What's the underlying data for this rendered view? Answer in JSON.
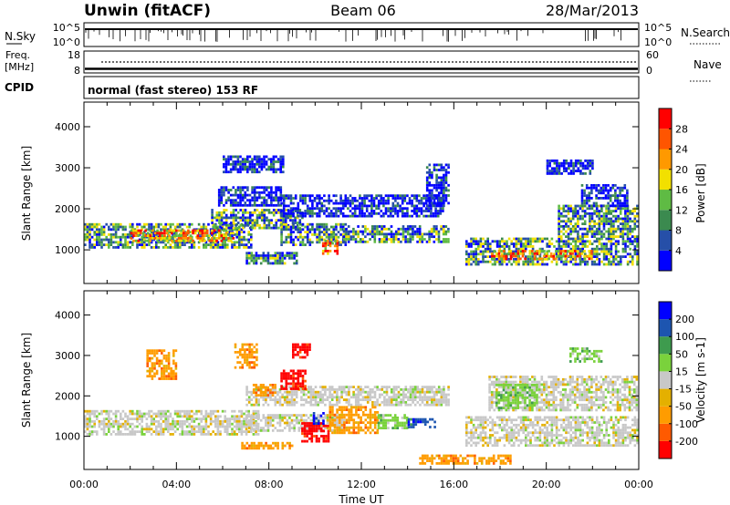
{
  "header": {
    "station": "Unwin (fitACF)",
    "beam": "Beam 06",
    "date": "28/Mar/2013"
  },
  "noise_panel": {
    "left_label": "N.Sky",
    "left_ticks": [
      "10^5",
      "10^0"
    ],
    "right_ticks": [
      "10^5",
      "10^0"
    ],
    "right_label": "N.Search"
  },
  "freq_panel": {
    "left_label_line1": "Freq.",
    "left_label_line2": "[MHz]",
    "left_ticks": [
      "18",
      "8"
    ],
    "right_ticks": [
      "60",
      "0"
    ],
    "right_label": "Nave"
  },
  "cpid": {
    "label": "CPID",
    "text": "normal (fast stereo) 153 RF"
  },
  "x_axis": {
    "ticks": [
      "00:00",
      "04:00",
      "08:00",
      "12:00",
      "16:00",
      "20:00",
      "00:00"
    ],
    "label": "Time UT"
  },
  "colors": {
    "power": [
      "#0000ff",
      "#264fa8",
      "#3b8a4f",
      "#5fbb44",
      "#f2e000",
      "#ff9900",
      "#ff5500",
      "#ff0000"
    ],
    "velocity": [
      "#ff0000",
      "#ff5a00",
      "#ff9c00",
      "#e4b000",
      "#c8c8c8",
      "#7ad23c",
      "#3e9b4e",
      "#1d55b0",
      "#0000ff"
    ],
    "gray": "#c8c8c8"
  },
  "chart_data": [
    {
      "type": "heatmap",
      "name": "power",
      "ylabel": "Slant Range [km]",
      "xlabel": "",
      "xlim_hours": [
        0,
        24
      ],
      "ylim": [
        180,
        4600
      ],
      "yticks": [
        1000,
        2000,
        3000,
        4000
      ],
      "colorbar": {
        "label": "Power [dB]",
        "ticks": [
          "4",
          "8",
          "12",
          "16",
          "20",
          "24",
          "28"
        ],
        "range": [
          0,
          32
        ]
      },
      "echo_regions": [
        {
          "x0": 0.0,
          "x1": 7.2,
          "r0": 1050,
          "r1": 1650,
          "level": "mixed"
        },
        {
          "x0": 2.0,
          "x1": 6.5,
          "r0": 1200,
          "r1": 1500,
          "level": "strong"
        },
        {
          "x0": 5.5,
          "x1": 9.5,
          "r0": 1550,
          "r1": 2000,
          "level": "mixed"
        },
        {
          "x0": 5.8,
          "x1": 8.5,
          "r0": 2100,
          "r1": 2550,
          "level": "weak"
        },
        {
          "x0": 6.0,
          "x1": 8.6,
          "r0": 2900,
          "r1": 3300,
          "level": "weak"
        },
        {
          "x0": 7.0,
          "x1": 9.2,
          "r0": 700,
          "r1": 950,
          "level": "mixed"
        },
        {
          "x0": 8.5,
          "x1": 11.3,
          "r0": 1150,
          "r1": 1650,
          "level": "mixed"
        },
        {
          "x0": 10.3,
          "x1": 11.0,
          "r0": 900,
          "r1": 1250,
          "level": "strong"
        },
        {
          "x0": 11.2,
          "x1": 15.8,
          "r0": 1200,
          "r1": 1600,
          "level": "mixed"
        },
        {
          "x0": 8.5,
          "x1": 15.5,
          "r0": 1850,
          "r1": 2350,
          "level": "weak"
        },
        {
          "x0": 14.8,
          "x1": 15.8,
          "r0": 2100,
          "r1": 3100,
          "level": "weak"
        },
        {
          "x0": 16.5,
          "x1": 23.9,
          "r0": 650,
          "r1": 1300,
          "level": "mixed"
        },
        {
          "x0": 17.5,
          "x1": 22.0,
          "r0": 800,
          "r1": 1000,
          "level": "strong"
        },
        {
          "x0": 20.5,
          "x1": 23.9,
          "r0": 1300,
          "r1": 2100,
          "level": "mixed"
        },
        {
          "x0": 21.5,
          "x1": 23.5,
          "r0": 2100,
          "r1": 2600,
          "level": "weak"
        },
        {
          "x0": 20.0,
          "x1": 22.0,
          "r0": 2850,
          "r1": 3200,
          "level": "weak"
        }
      ]
    },
    {
      "type": "heatmap",
      "name": "velocity",
      "ylabel": "Slant Range [km]",
      "xlabel": "Time UT",
      "xlim_hours": [
        0,
        24
      ],
      "ylim": [
        180,
        4600
      ],
      "yticks": [
        1000,
        2000,
        3000,
        4000
      ],
      "colorbar": {
        "label": "Velocity [m s-1]",
        "ticks": [
          "-200",
          "-100",
          "-50",
          "-15",
          "15",
          "50",
          "100",
          "200"
        ],
        "range": [
          -250,
          250
        ]
      },
      "echo_regions": [
        {
          "x0": 0.0,
          "x1": 7.5,
          "r0": 1050,
          "r1": 1650,
          "vel": "gray"
        },
        {
          "x0": 7.0,
          "x1": 15.8,
          "r0": 1800,
          "r1": 2250,
          "vel": "gray"
        },
        {
          "x0": 7.0,
          "x1": 11.3,
          "r0": 1150,
          "r1": 1550,
          "vel": "gray"
        },
        {
          "x0": 16.5,
          "x1": 23.9,
          "r0": 800,
          "r1": 1500,
          "vel": "gray"
        },
        {
          "x0": 17.5,
          "x1": 23.9,
          "r0": 1650,
          "r1": 2500,
          "vel": "gray"
        },
        {
          "x0": 2.7,
          "x1": 4.0,
          "r0": 2450,
          "r1": 3150,
          "vel": "orange"
        },
        {
          "x0": 6.5,
          "x1": 7.5,
          "r0": 2700,
          "r1": 3300,
          "vel": "orange"
        },
        {
          "x0": 6.8,
          "x1": 9.0,
          "r0": 680,
          "r1": 860,
          "vel": "orange"
        },
        {
          "x0": 7.3,
          "x1": 8.3,
          "r0": 2000,
          "r1": 2300,
          "vel": "orange"
        },
        {
          "x0": 8.5,
          "x1": 9.6,
          "r0": 2150,
          "r1": 2650,
          "vel": "red"
        },
        {
          "x0": 9.0,
          "x1": 9.8,
          "r0": 2950,
          "r1": 3300,
          "vel": "red"
        },
        {
          "x0": 9.4,
          "x1": 10.6,
          "r0": 900,
          "r1": 1350,
          "vel": "red"
        },
        {
          "x0": 9.9,
          "x1": 10.4,
          "r0": 1300,
          "r1": 1600,
          "vel": "blue"
        },
        {
          "x0": 10.6,
          "x1": 12.7,
          "r0": 1100,
          "r1": 1750,
          "vel": "orange"
        },
        {
          "x0": 12.7,
          "x1": 14.0,
          "r0": 1200,
          "r1": 1550,
          "vel": "green"
        },
        {
          "x0": 14.0,
          "x1": 15.2,
          "r0": 1250,
          "r1": 1450,
          "vel": "darkblue"
        },
        {
          "x0": 17.8,
          "x1": 19.6,
          "r0": 1700,
          "r1": 2300,
          "vel": "green"
        },
        {
          "x0": 21.0,
          "x1": 22.4,
          "r0": 2850,
          "r1": 3200,
          "vel": "green"
        },
        {
          "x0": 14.5,
          "x1": 18.5,
          "r0": 300,
          "r1": 550,
          "vel": "orange"
        }
      ]
    }
  ]
}
